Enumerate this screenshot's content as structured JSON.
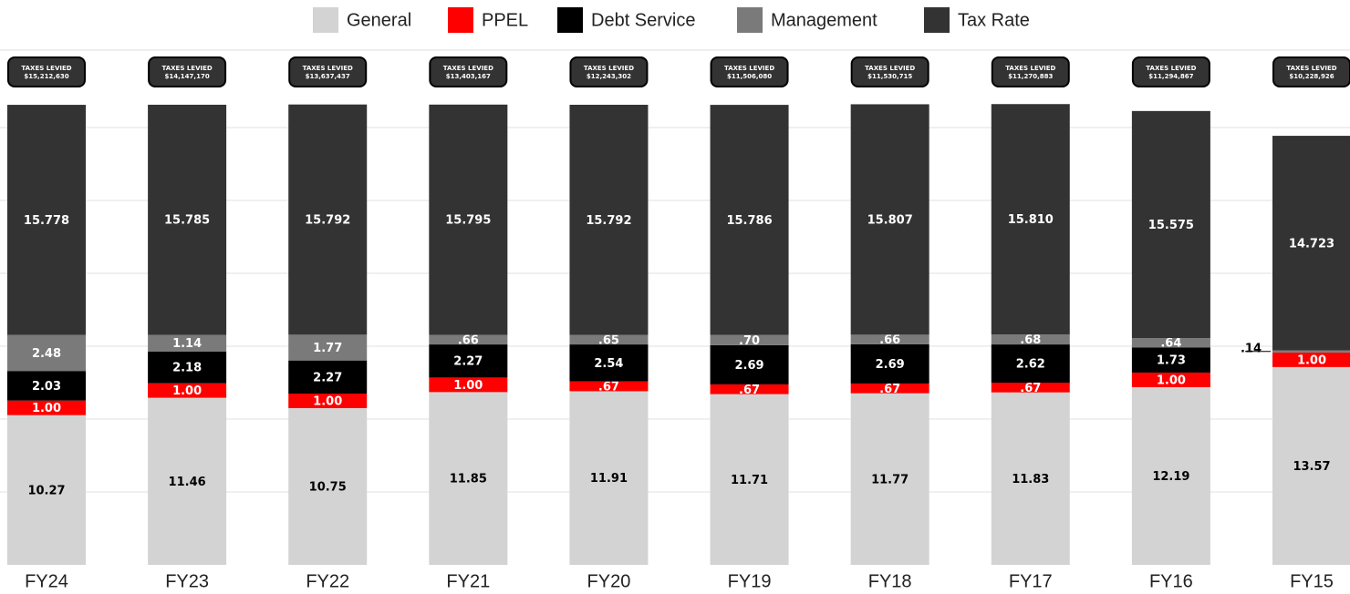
{
  "chart_data": {
    "type": "stacked_bar",
    "categories": [
      "FY24",
      "FY23",
      "FY22",
      "FY21",
      "FY20",
      "FY19",
      "FY18",
      "FY17",
      "FY16",
      "FY15"
    ],
    "series": [
      {
        "name": "General",
        "color": "#d3d3d3",
        "label_color": "#000000",
        "values": [
          10.27,
          11.46,
          10.75,
          11.85,
          11.91,
          11.71,
          11.77,
          11.83,
          12.19,
          13.57
        ],
        "value_labels": [
          "10.27",
          "11.46",
          "10.75",
          "11.85",
          "11.91",
          "11.71",
          "11.77",
          "11.83",
          "12.19",
          "13.57"
        ]
      },
      {
        "name": "PPEL",
        "color": "#ff0000",
        "label_color": "#ffffff",
        "values": [
          1.0,
          1.0,
          1.0,
          1.0,
          0.67,
          0.67,
          0.67,
          0.67,
          1.0,
          1.0
        ],
        "value_labels": [
          "1.00",
          "1.00",
          "1.00",
          "1.00",
          ".67",
          ".67",
          ".67",
          ".67",
          "1.00",
          "1.00"
        ]
      },
      {
        "name": "Debt Service",
        "color": "#000000",
        "label_color": "#ffffff",
        "values": [
          2.03,
          2.18,
          2.27,
          2.27,
          2.54,
          2.69,
          2.69,
          2.62,
          1.73,
          0
        ],
        "value_labels": [
          "2.03",
          "2.18",
          "2.27",
          "2.27",
          "2.54",
          "2.69",
          "2.69",
          "2.62",
          "1.73",
          null
        ]
      },
      {
        "name": "Management",
        "color": "#7a7a7a",
        "label_color": "#ffffff",
        "values": [
          2.48,
          1.14,
          1.77,
          0.66,
          0.65,
          0.7,
          0.66,
          0.68,
          0.64,
          0.14
        ],
        "value_labels": [
          "2.48",
          "1.14",
          "1.77",
          ".66",
          ".65",
          ".70",
          ".66",
          ".68",
          ".64",
          ".14"
        ]
      },
      {
        "name": "Tax Rate",
        "color": "#333333",
        "label_color": "#ffffff",
        "values": [
          15.778,
          15.785,
          15.792,
          15.795,
          15.792,
          15.786,
          15.807,
          15.81,
          15.575,
          14.723
        ],
        "value_labels": [
          "15.778",
          "15.785",
          "15.792",
          "15.795",
          "15.792",
          "15.786",
          "15.807",
          "15.810",
          "15.575",
          "14.723"
        ]
      }
    ],
    "annotations": [
      {
        "title": "TAXES LEVIED",
        "text": "$15,212,630"
      },
      {
        "title": "TAXES LEVIED",
        "text": "$14,147,170"
      },
      {
        "title": "TAXES LEVIED",
        "text": "$13,637,437"
      },
      {
        "title": "TAXES LEVIED",
        "text": "$13,403,167"
      },
      {
        "title": "TAXES LEVIED",
        "text": "$12,243,302"
      },
      {
        "title": "TAXES LEVIED",
        "text": "$11,506,080"
      },
      {
        "title": "TAXES LEVIED",
        "text": "$11,530,715"
      },
      {
        "title": "TAXES LEVIED",
        "text": "$11,270,883"
      },
      {
        "title": "TAXES LEVIED",
        "text": "$11,294,867"
      },
      {
        "title": "TAXES LEVIED",
        "text": "$10,228,926"
      }
    ],
    "ylim": [
      0,
      32
    ],
    "yticks": [
      5,
      10,
      15,
      20,
      25,
      30
    ],
    "show_ytick_labels": false,
    "grid": true,
    "legend": "top"
  }
}
